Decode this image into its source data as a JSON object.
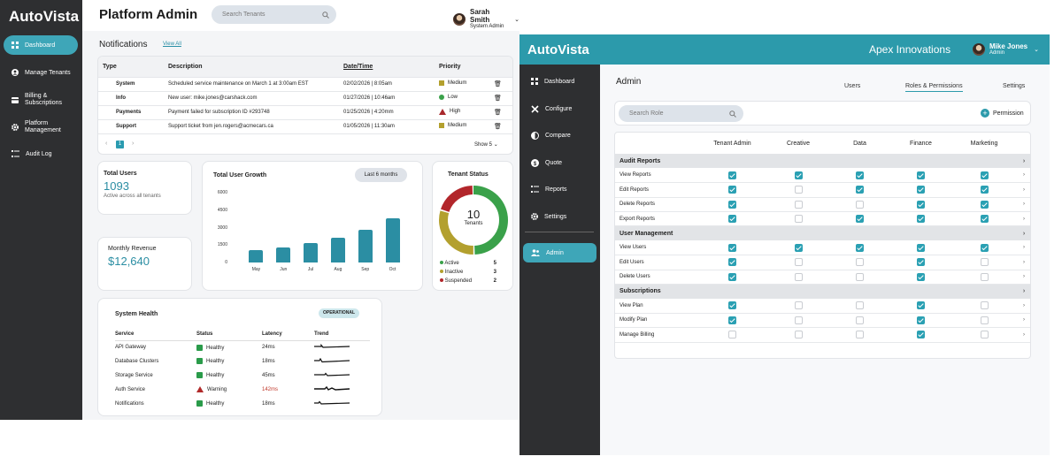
{
  "left": {
    "brand": "AutoVista",
    "page_title": "Platform Admin",
    "search_placeholder": "Search Tenants",
    "user": {
      "name": "Sarah Smith",
      "role": "System Admin"
    },
    "nav": [
      {
        "label": "Dashboard",
        "icon": "grid-icon",
        "active": true
      },
      {
        "label": "Manage Tenants",
        "icon": "user-icon"
      },
      {
        "label": "Billing & Subscriptions",
        "icon": "credit-card-icon"
      },
      {
        "label": "Platform Management",
        "icon": "gear-icon"
      },
      {
        "label": "Audit Log",
        "icon": "list-icon"
      }
    ],
    "notifications": {
      "title": "Notifications",
      "view_all": "View All",
      "headers": [
        "Type",
        "Description",
        "Date/Time",
        "Priority"
      ],
      "rows": [
        {
          "type": "System",
          "description": "Scheduled service maintenance on March 1 at 3:00am EST",
          "datetime": "02/02/2026 | 8:05am",
          "priority": "Medium"
        },
        {
          "type": "Info",
          "description": "New user: mike.jones@carshack.com",
          "datetime": "01/27/2026 | 10:46am",
          "priority": "Low"
        },
        {
          "type": "Payments",
          "description": "Payment failed for subscription ID #293748",
          "datetime": "01/25/2026 | 4:20mm",
          "priority": "High"
        },
        {
          "type": "Support",
          "description": "Support ticket from jen.rogers@acmecars.ca",
          "datetime": "01/05/2026 | 11:30am",
          "priority": "Medium"
        }
      ],
      "page": "1",
      "show": "Show 5"
    },
    "total_users": {
      "label": "Total Users",
      "value": "1093",
      "sub": "Active across all tenants"
    },
    "monthly_revenue": {
      "label": "Monthly Revenue",
      "value": "$12,640"
    },
    "growth": {
      "title": "Total User Growth",
      "range": "Last 6 months"
    },
    "tenant_status": {
      "title": "Tenant Status",
      "count": "10",
      "unit": "Tenants",
      "items": [
        {
          "label": "Active",
          "value": 5,
          "color": "#3aa14a"
        },
        {
          "label": "Inactive",
          "value": 3,
          "color": "#b3a02e"
        },
        {
          "label": "Suspended",
          "value": 2,
          "color": "#b2262b"
        }
      ]
    },
    "system_health": {
      "title": "System Health",
      "badge": "OPERATIONAL",
      "headers": [
        "Service",
        "Status",
        "Latency",
        "Trend"
      ],
      "rows": [
        {
          "service": "API Gateway",
          "status": "Healthy",
          "latency": "24ms"
        },
        {
          "service": "Database Clusters",
          "status": "Healthy",
          "latency": "18ms"
        },
        {
          "service": "Storage Service",
          "status": "Healthy",
          "latency": "45ms"
        },
        {
          "service": "Auth Service",
          "status": "Warning",
          "latency": "142ms"
        },
        {
          "service": "Notifications",
          "status": "Healthy",
          "latency": "18ms"
        }
      ]
    }
  },
  "chart_data": {
    "type": "bar",
    "title": "Total User Growth",
    "categories": [
      "May",
      "Jun",
      "Jul",
      "Aug",
      "Sep",
      "Oct"
    ],
    "values": [
      1100,
      1300,
      1700,
      2100,
      2800,
      3800
    ],
    "yticks": [
      0,
      1500,
      3000,
      4500,
      6000
    ],
    "ylim": [
      0,
      6000
    ],
    "color": "#2b8ea3"
  },
  "right": {
    "brand": "AutoVista",
    "tenant": "Apex Innovations",
    "user": {
      "name": "Mike Jones",
      "role": "Admin"
    },
    "nav": [
      {
        "label": "Dashboard",
        "icon": "grid-icon"
      },
      {
        "label": "Configure",
        "icon": "tools-icon"
      },
      {
        "label": "Compare",
        "icon": "contrast-icon"
      },
      {
        "label": "Quote",
        "icon": "dollar-icon"
      },
      {
        "label": "Reports",
        "icon": "list-icon"
      },
      {
        "label": "Settings",
        "icon": "gear-icon"
      },
      {
        "label": "Admin",
        "icon": "users-icon",
        "active": true
      }
    ],
    "section_title": "Admin",
    "tabs": [
      "Users",
      "Roles & Permissions",
      "Settings"
    ],
    "search_placeholder": "Search  Role",
    "add_permission": "Permission",
    "roles": [
      "Tenant Admin",
      "Creative",
      "Data",
      "Finance",
      "Marketing"
    ],
    "groups": [
      {
        "name": "Audit Reports",
        "rows": [
          {
            "label": "View Reports",
            "checks": [
              true,
              true,
              true,
              true,
              true
            ]
          },
          {
            "label": "Edit Reports",
            "checks": [
              true,
              false,
              true,
              true,
              true
            ]
          },
          {
            "label": "Delete Reports",
            "checks": [
              true,
              false,
              false,
              true,
              true
            ]
          },
          {
            "label": "Export Reports",
            "checks": [
              true,
              false,
              true,
              true,
              true
            ]
          }
        ]
      },
      {
        "name": "User Management",
        "rows": [
          {
            "label": "View Users",
            "checks": [
              true,
              true,
              true,
              true,
              true
            ]
          },
          {
            "label": "Edit Users",
            "checks": [
              true,
              false,
              false,
              true,
              false
            ]
          },
          {
            "label": "Delete Users",
            "checks": [
              true,
              false,
              false,
              true,
              false
            ]
          }
        ]
      },
      {
        "name": "Subscriptions",
        "rows": [
          {
            "label": "View Plan",
            "checks": [
              true,
              false,
              false,
              true,
              false
            ]
          },
          {
            "label": "Modify Plan",
            "checks": [
              true,
              false,
              false,
              true,
              false
            ]
          },
          {
            "label": "Manage Billing",
            "checks": [
              false,
              false,
              false,
              true,
              false
            ]
          }
        ]
      }
    ]
  }
}
